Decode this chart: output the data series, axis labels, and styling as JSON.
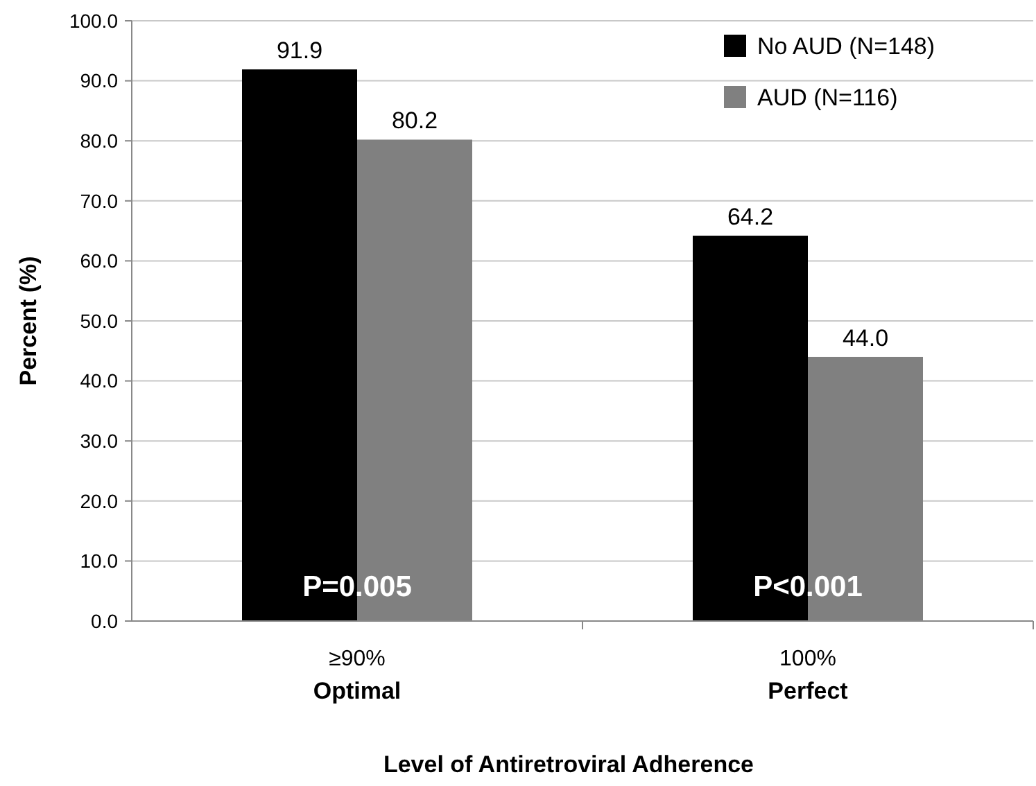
{
  "chart_data": {
    "type": "bar",
    "xlabel": "Level of Antiretroviral Adherence",
    "ylabel": "Percent (%)",
    "categories": [
      "≥90%\nOptimal",
      "100%\nPerfect"
    ],
    "series": [
      {
        "name": "No AUD (N=148)",
        "color": "#000000",
        "values": [
          91.9,
          64.2
        ],
        "value_labels": [
          "91.9",
          "64.2"
        ]
      },
      {
        "name": "AUD (N=116)",
        "color": "#808080",
        "values": [
          80.2,
          44.0
        ],
        "value_labels": [
          "80.2",
          "44.0"
        ]
      }
    ],
    "ylim": [
      0,
      100
    ],
    "yticks": [
      {
        "value": 0,
        "label": "0.0"
      },
      {
        "value": 10,
        "label": "10.0"
      },
      {
        "value": 20,
        "label": "20.0"
      },
      {
        "value": 30,
        "label": "30.0"
      },
      {
        "value": 40,
        "label": "40.0"
      },
      {
        "value": 50,
        "label": "50.0"
      },
      {
        "value": 60,
        "label": "60.0"
      },
      {
        "value": 70,
        "label": "70.0"
      },
      {
        "value": 80,
        "label": "80.0"
      },
      {
        "value": 90,
        "label": "90.0"
      },
      {
        "value": 100,
        "label": "100.0"
      }
    ],
    "grid": "y",
    "legend": "top right",
    "annotations": [
      "P=0.005",
      "P<0.001"
    ]
  }
}
